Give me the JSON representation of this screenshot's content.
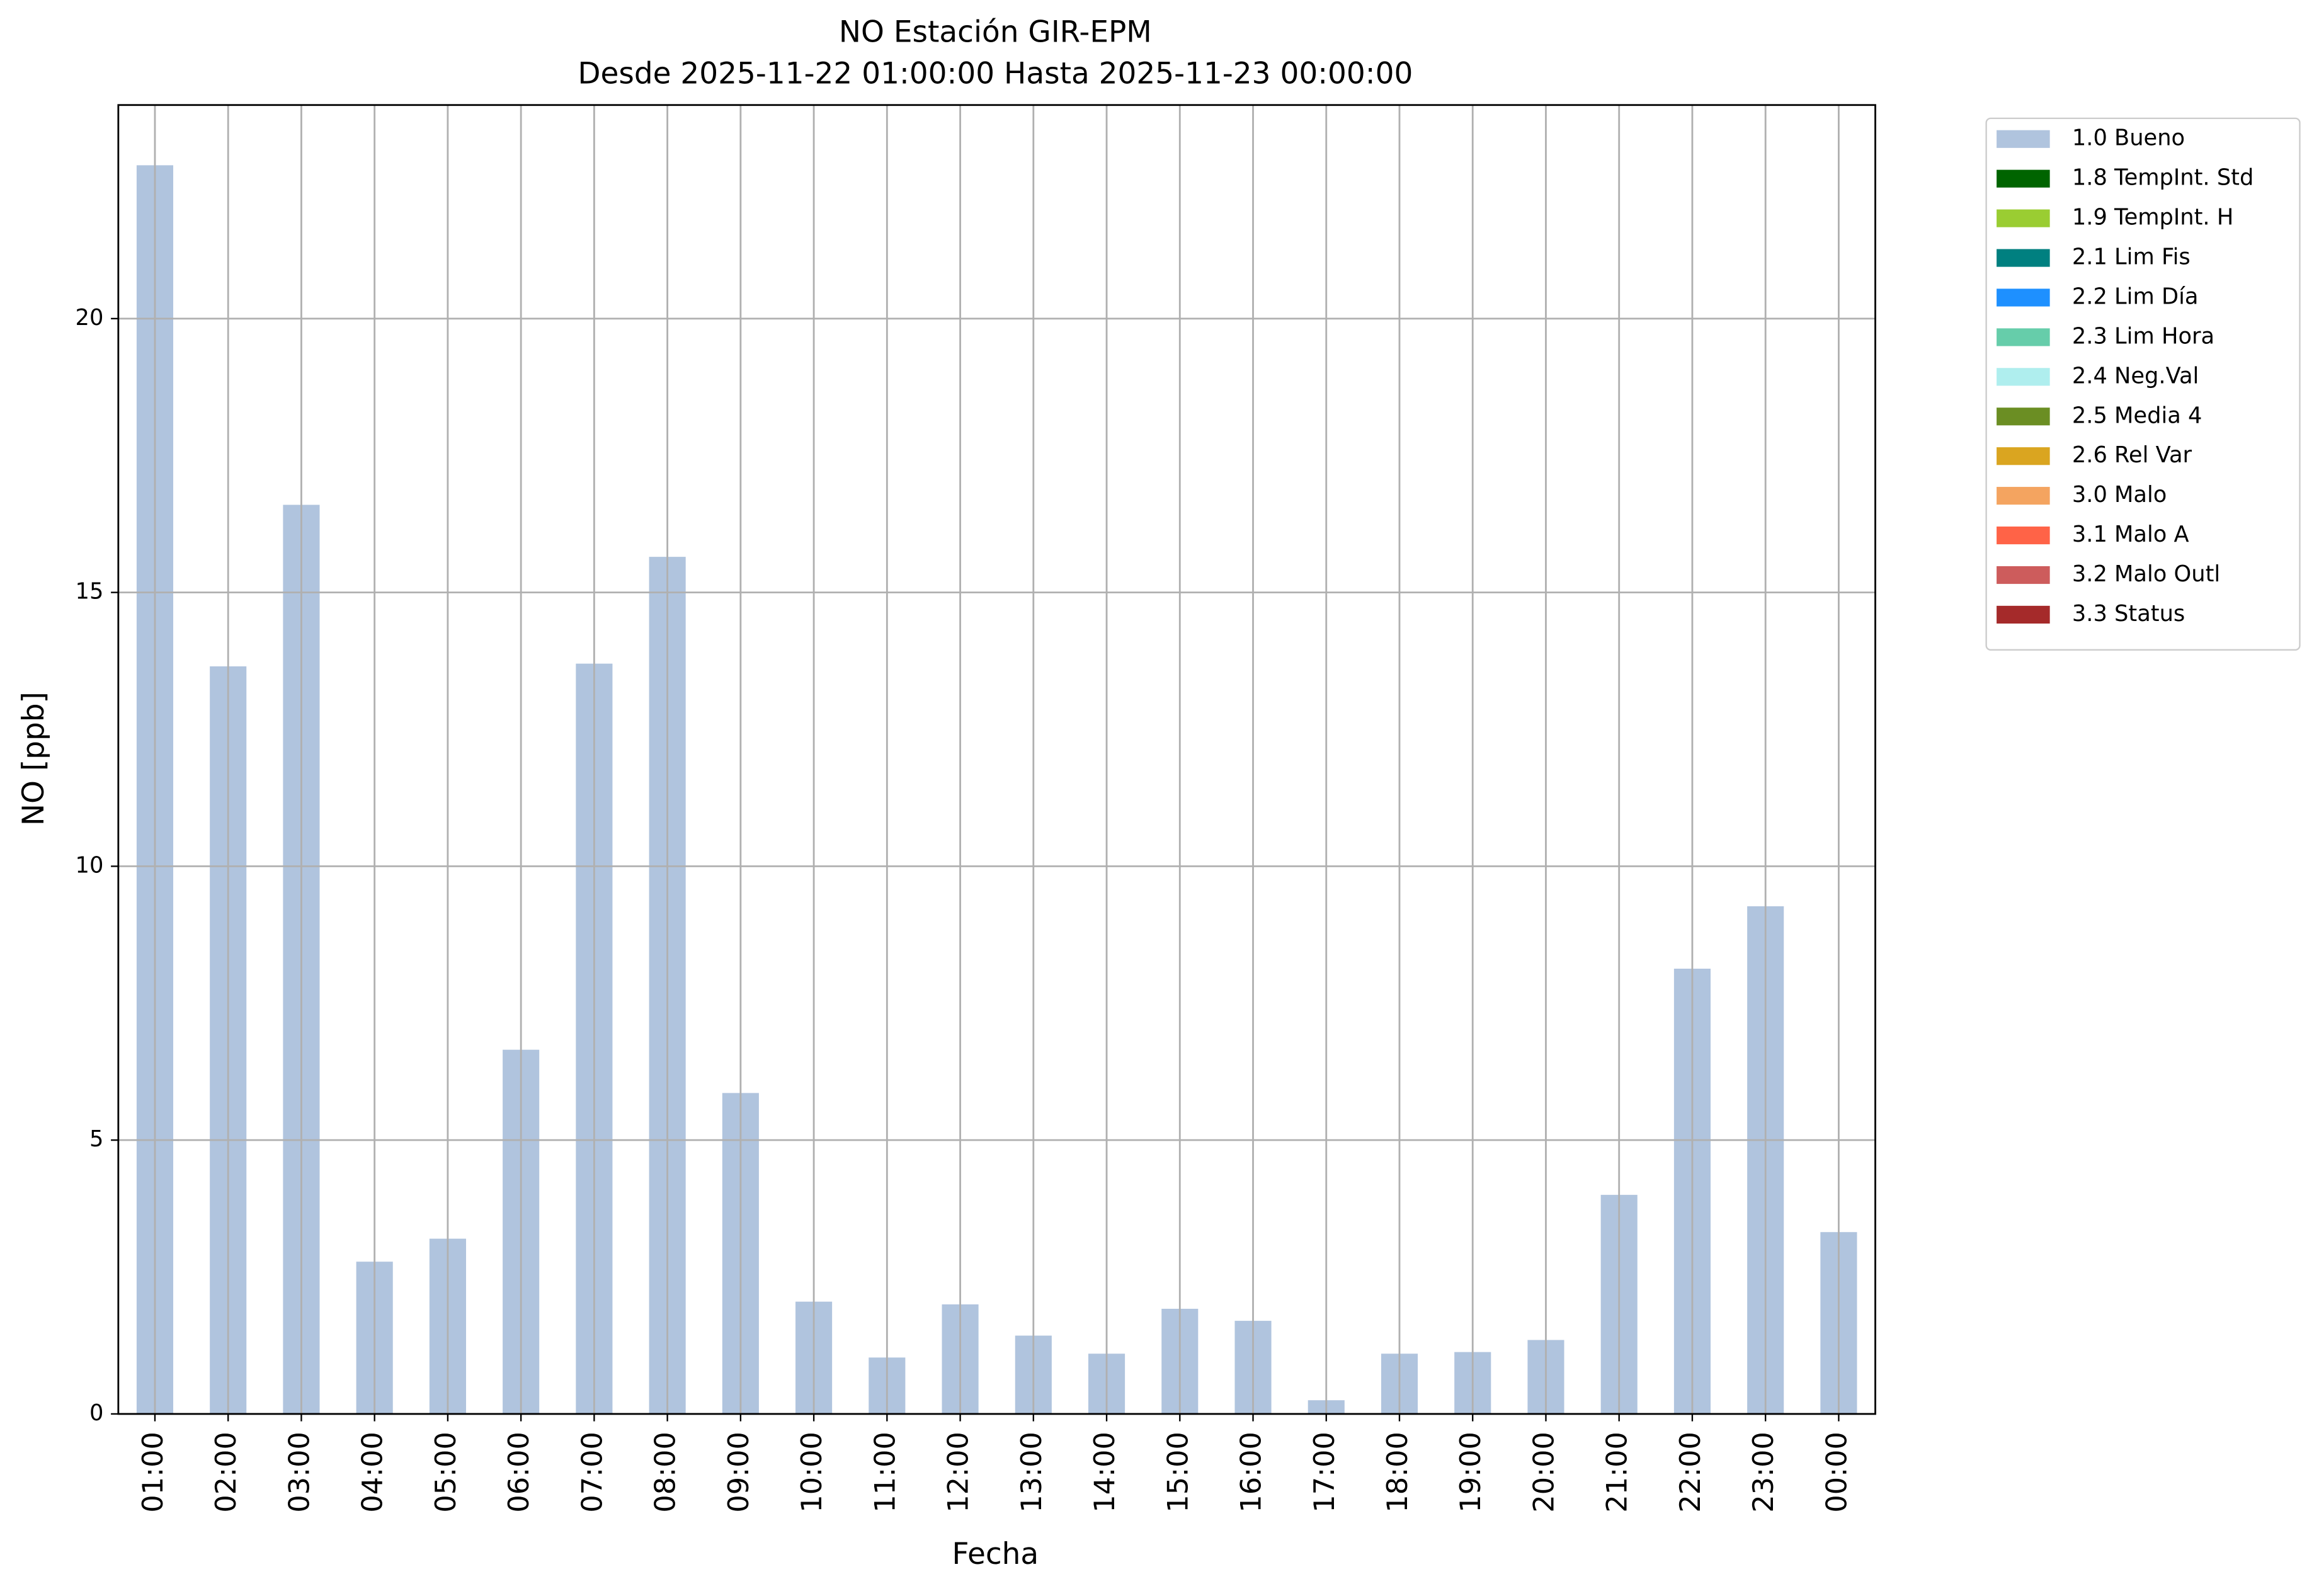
{
  "chart_data": {
    "type": "stacked_bar",
    "title": "NO Estación GIR-EPM",
    "subtitle": "Desde 2025-11-22 01:00:00 Hasta 2025-11-23 00:00:00",
    "x_label": "Fecha",
    "y_label": "NO [ppb]",
    "categories": [
      "01:00",
      "02:00",
      "03:00",
      "04:00",
      "05:00",
      "06:00",
      "07:00",
      "08:00",
      "09:00",
      "10:00",
      "11:00",
      "12:00",
      "13:00",
      "14:00",
      "15:00",
      "16:00",
      "17:00",
      "18:00",
      "19:00",
      "20:00",
      "21:00",
      "22:00",
      "23:00",
      "00:00"
    ],
    "series": [
      {
        "name": "1.0 Bueno",
        "color": "#b0c4de",
        "values": [
          22.8,
          13.65,
          16.6,
          2.78,
          3.2,
          6.65,
          13.7,
          15.65,
          5.86,
          2.05,
          1.03,
          2.0,
          1.43,
          1.1,
          1.92,
          1.7,
          0.25,
          1.1,
          1.13,
          1.35,
          4.0,
          8.13,
          9.27,
          3.32
        ]
      },
      {
        "name": "1.8 TempInt. Std",
        "color": "#006400",
        "values": [
          null,
          null,
          null,
          null,
          null,
          null,
          null,
          null,
          null,
          null,
          null,
          null,
          null,
          null,
          null,
          null,
          null,
          null,
          null,
          null,
          null,
          null,
          null,
          null
        ]
      },
      {
        "name": "1.9 TempInt. H",
        "color": "#9acd32",
        "values": [
          null,
          null,
          null,
          null,
          null,
          null,
          null,
          null,
          null,
          null,
          null,
          null,
          null,
          null,
          null,
          null,
          null,
          null,
          null,
          null,
          null,
          null,
          null,
          null
        ]
      },
      {
        "name": "2.1 Lim Fis",
        "color": "#008080",
        "values": [
          null,
          null,
          null,
          null,
          null,
          null,
          null,
          null,
          null,
          null,
          null,
          null,
          null,
          null,
          null,
          null,
          null,
          null,
          null,
          null,
          null,
          null,
          null,
          null
        ]
      },
      {
        "name": "2.2 Lim Día",
        "color": "#1e90ff",
        "values": [
          null,
          null,
          null,
          null,
          null,
          null,
          null,
          null,
          null,
          null,
          null,
          null,
          null,
          null,
          null,
          null,
          null,
          null,
          null,
          null,
          null,
          null,
          null,
          null
        ]
      },
      {
        "name": "2.3 Lim Hora",
        "color": "#66cdaa",
        "values": [
          null,
          null,
          null,
          null,
          null,
          null,
          null,
          null,
          null,
          null,
          null,
          null,
          null,
          null,
          null,
          null,
          null,
          null,
          null,
          null,
          null,
          null,
          null,
          null
        ]
      },
      {
        "name": "2.4 Neg.Val",
        "color": "#afeeee",
        "values": [
          null,
          null,
          null,
          null,
          null,
          null,
          null,
          null,
          null,
          null,
          null,
          null,
          null,
          null,
          null,
          null,
          null,
          null,
          null,
          null,
          null,
          null,
          null,
          null
        ]
      },
      {
        "name": "2.5 Media 4",
        "color": "#6b8e23",
        "values": [
          null,
          null,
          null,
          null,
          null,
          null,
          null,
          null,
          null,
          null,
          null,
          null,
          null,
          null,
          null,
          null,
          null,
          null,
          null,
          null,
          null,
          null,
          null,
          null
        ]
      },
      {
        "name": "2.6 Rel Var",
        "color": "#daa520",
        "values": [
          null,
          null,
          null,
          null,
          null,
          null,
          null,
          null,
          null,
          null,
          null,
          null,
          null,
          null,
          null,
          null,
          null,
          null,
          null,
          null,
          null,
          null,
          null,
          null
        ]
      },
      {
        "name": "3.0 Malo",
        "color": "#f4a460",
        "values": [
          null,
          null,
          null,
          null,
          null,
          null,
          null,
          null,
          null,
          null,
          null,
          null,
          null,
          null,
          null,
          null,
          null,
          null,
          null,
          null,
          null,
          null,
          null,
          null
        ]
      },
      {
        "name": "3.1 Malo A",
        "color": "#ff6347",
        "values": [
          null,
          null,
          null,
          null,
          null,
          null,
          null,
          null,
          null,
          null,
          null,
          null,
          null,
          null,
          null,
          null,
          null,
          null,
          null,
          null,
          null,
          null,
          null,
          null
        ]
      },
      {
        "name": "3.2 Malo Outl",
        "color": "#cd5c5c",
        "values": [
          null,
          null,
          null,
          null,
          null,
          null,
          null,
          null,
          null,
          null,
          null,
          null,
          null,
          null,
          null,
          null,
          null,
          null,
          null,
          null,
          null,
          null,
          null,
          null
        ]
      },
      {
        "name": "3.3 Status",
        "color": "#a52a2a",
        "values": [
          null,
          null,
          null,
          null,
          null,
          null,
          null,
          null,
          null,
          null,
          null,
          null,
          null,
          null,
          null,
          null,
          null,
          null,
          null,
          null,
          null,
          null,
          null,
          null
        ]
      }
    ],
    "ylim": [
      0,
      23.9
    ],
    "yticks": [
      0,
      5,
      10,
      15,
      20
    ],
    "grid": true,
    "legend": "outside-right"
  }
}
